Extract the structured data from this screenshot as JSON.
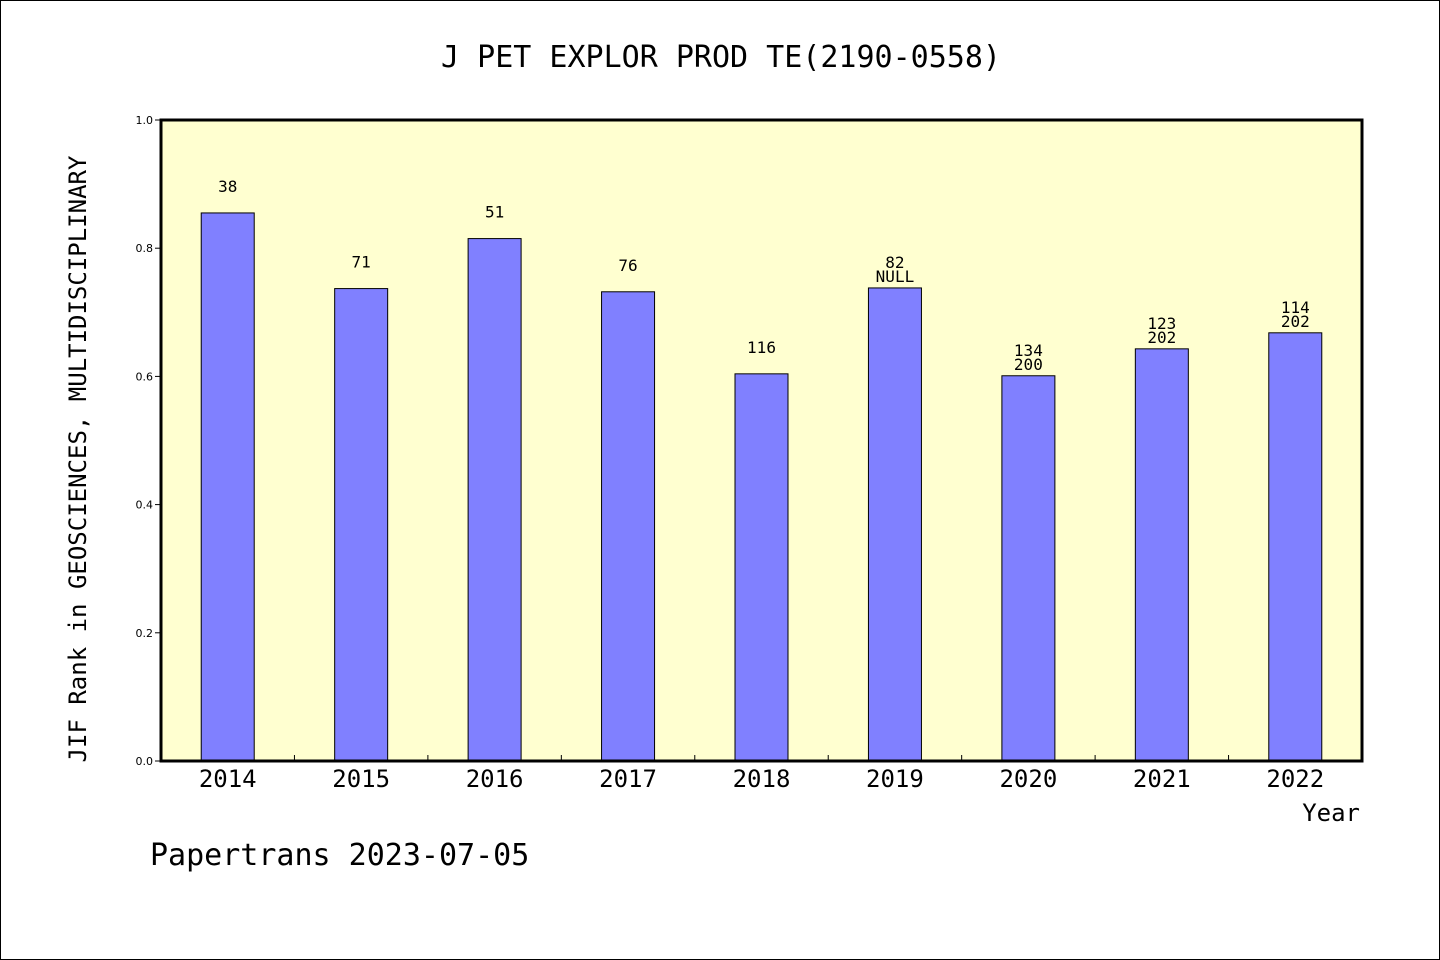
{
  "chart_data": {
    "type": "bar",
    "title": "J PET EXPLOR PROD TE(2190-0558)",
    "xlabel": "Year",
    "ylabel": "JIF Rank in GEOSCIENCES, MULTIDISCIPLINARY",
    "categories": [
      "2014",
      "2015",
      "2016",
      "2017",
      "2018",
      "2019",
      "2020",
      "2021",
      "2022"
    ],
    "values": [
      0.855,
      0.737,
      0.815,
      0.732,
      0.604,
      0.738,
      0.601,
      0.643,
      0.668
    ],
    "bar_labels": [
      [
        "38"
      ],
      [
        "71"
      ],
      [
        "51"
      ],
      [
        "76"
      ],
      [
        "116"
      ],
      [
        "82",
        "NULL"
      ],
      [
        "134",
        "200"
      ],
      [
        "123",
        "202"
      ],
      [
        "114",
        "202"
      ]
    ],
    "ylim": [
      0,
      1.0
    ],
    "yticks": [
      "0.0",
      "0.2",
      "0.4",
      "0.6",
      "0.8",
      "1.0"
    ],
    "grid": false,
    "colors": {
      "bar_fill": "#8080ff",
      "plot_background": "#ffffd0",
      "axis": "#000000"
    }
  },
  "footer": {
    "source": "Papertrans 2023-07-05"
  }
}
